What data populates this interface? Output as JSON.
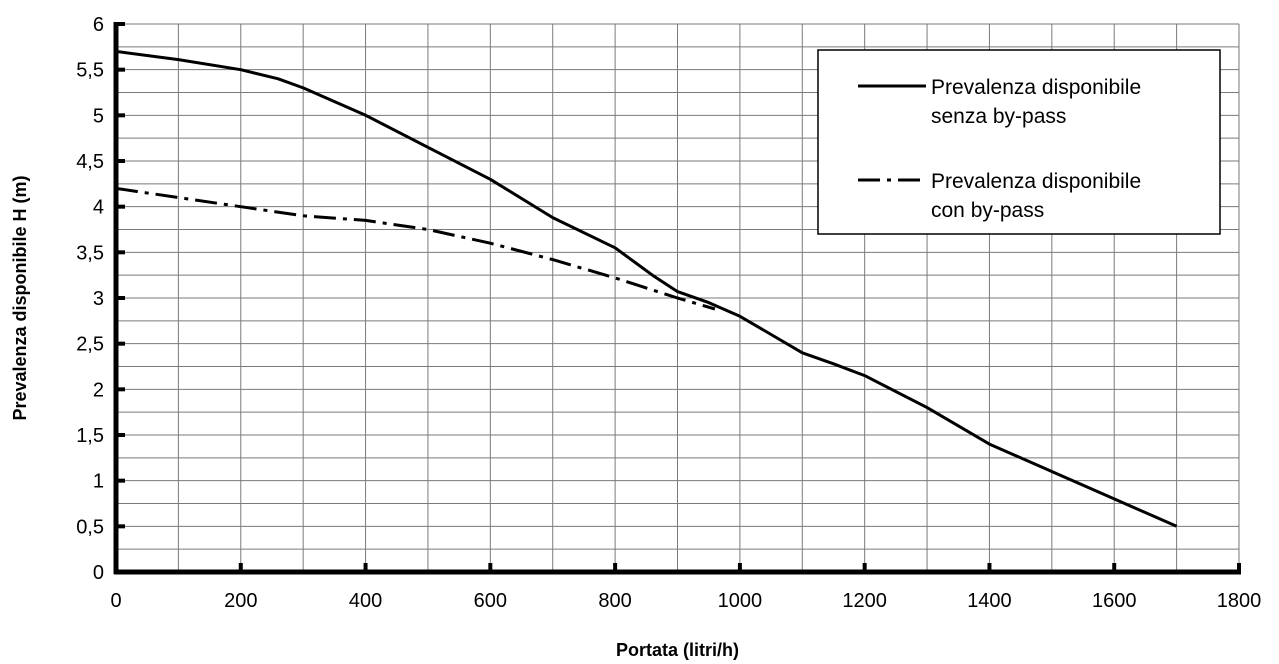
{
  "chart_data": {
    "type": "line",
    "title": "",
    "xlabel": "Portata (litri/h)",
    "ylabel": "Prevalenza disponibile H (m)",
    "xlim": [
      0,
      1800
    ],
    "ylim": [
      0,
      6
    ],
    "x_ticks": [
      0,
      200,
      400,
      600,
      800,
      1000,
      1200,
      1400,
      1600,
      1800
    ],
    "x_tick_labels": [
      "0",
      "200",
      "400",
      "600",
      "800",
      "1000",
      "1200",
      "1400",
      "1600",
      "1800"
    ],
    "y_ticks": [
      0,
      0.5,
      1,
      1.5,
      2,
      2.5,
      3,
      3.5,
      4,
      4.5,
      5,
      5.5,
      6
    ],
    "y_tick_labels": [
      "0",
      "0,5",
      "1",
      "1,5",
      "2",
      "2,5",
      "3",
      "3,5",
      "4",
      "4,5",
      "5",
      "5,5",
      "6"
    ],
    "x_minor_step": 100,
    "y_minor_step": 0.25,
    "grid": true,
    "legend_position": "top-right",
    "series": [
      {
        "name": "Prevalenza disponibile senza by-pass",
        "name_lines": [
          "Prevalenza disponibile",
          "senza by-pass"
        ],
        "line_style": "solid",
        "color": "#000000",
        "points": [
          [
            0,
            5.7
          ],
          [
            100,
            5.61
          ],
          [
            200,
            5.5
          ],
          [
            260,
            5.4
          ],
          [
            300,
            5.3
          ],
          [
            400,
            5.0
          ],
          [
            500,
            4.65
          ],
          [
            600,
            4.3
          ],
          [
            700,
            3.88
          ],
          [
            800,
            3.55
          ],
          [
            860,
            3.25
          ],
          [
            900,
            3.07
          ],
          [
            950,
            2.95
          ],
          [
            1000,
            2.8
          ],
          [
            1050,
            2.6
          ],
          [
            1100,
            2.4
          ],
          [
            1150,
            2.28
          ],
          [
            1200,
            2.15
          ],
          [
            1300,
            1.8
          ],
          [
            1400,
            1.4
          ],
          [
            1500,
            1.1
          ],
          [
            1600,
            0.8
          ],
          [
            1700,
            0.5
          ]
        ]
      },
      {
        "name": "Prevalenza disponibile con by-pass",
        "name_lines": [
          "Prevalenza disponibile",
          "con by-pass"
        ],
        "line_style": "dash-dot",
        "color": "#000000",
        "points": [
          [
            0,
            4.2
          ],
          [
            200,
            4.0
          ],
          [
            300,
            3.9
          ],
          [
            400,
            3.85
          ],
          [
            500,
            3.75
          ],
          [
            600,
            3.6
          ],
          [
            700,
            3.42
          ],
          [
            800,
            3.22
          ],
          [
            900,
            3.0
          ],
          [
            960,
            2.88
          ]
        ]
      }
    ]
  }
}
